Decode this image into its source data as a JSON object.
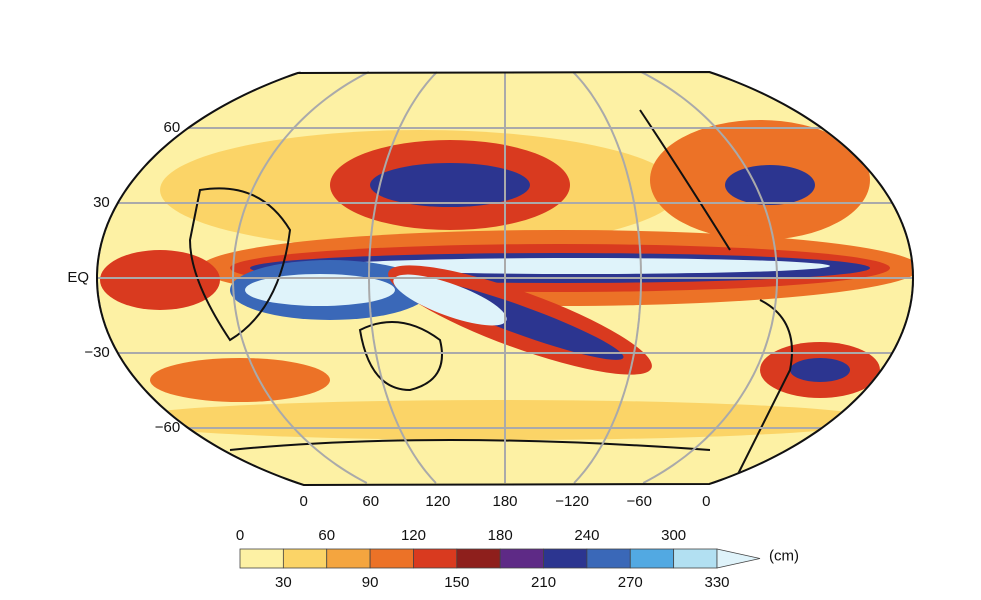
{
  "map": {
    "lat_ticks": [
      60,
      30,
      {
        "value": 0,
        "label": "EQ"
      },
      {
        "value": -30,
        "label": "−30"
      },
      {
        "value": -60,
        "label": "−60"
      }
    ],
    "lon_ticks": [
      0,
      60,
      120,
      180,
      {
        "value": 240,
        "label": "−120"
      },
      {
        "value": 300,
        "label": "−60"
      },
      {
        "value": 360,
        "label": "0"
      }
    ],
    "colorbar": {
      "unit": "(cm)",
      "levels": [
        0,
        30,
        60,
        90,
        120,
        150,
        180,
        210,
        240,
        270,
        300,
        330
      ],
      "colors": [
        "#fdf1a4",
        "#fbd467",
        "#f4a53f",
        "#ec7227",
        "#d93a1f",
        "#8e1f1c",
        "#5e2a86",
        "#2c3590",
        "#3a68b8",
        "#52a9e2",
        "#b2e0f2"
      ],
      "extend_color": "#dff3fa"
    }
  }
}
